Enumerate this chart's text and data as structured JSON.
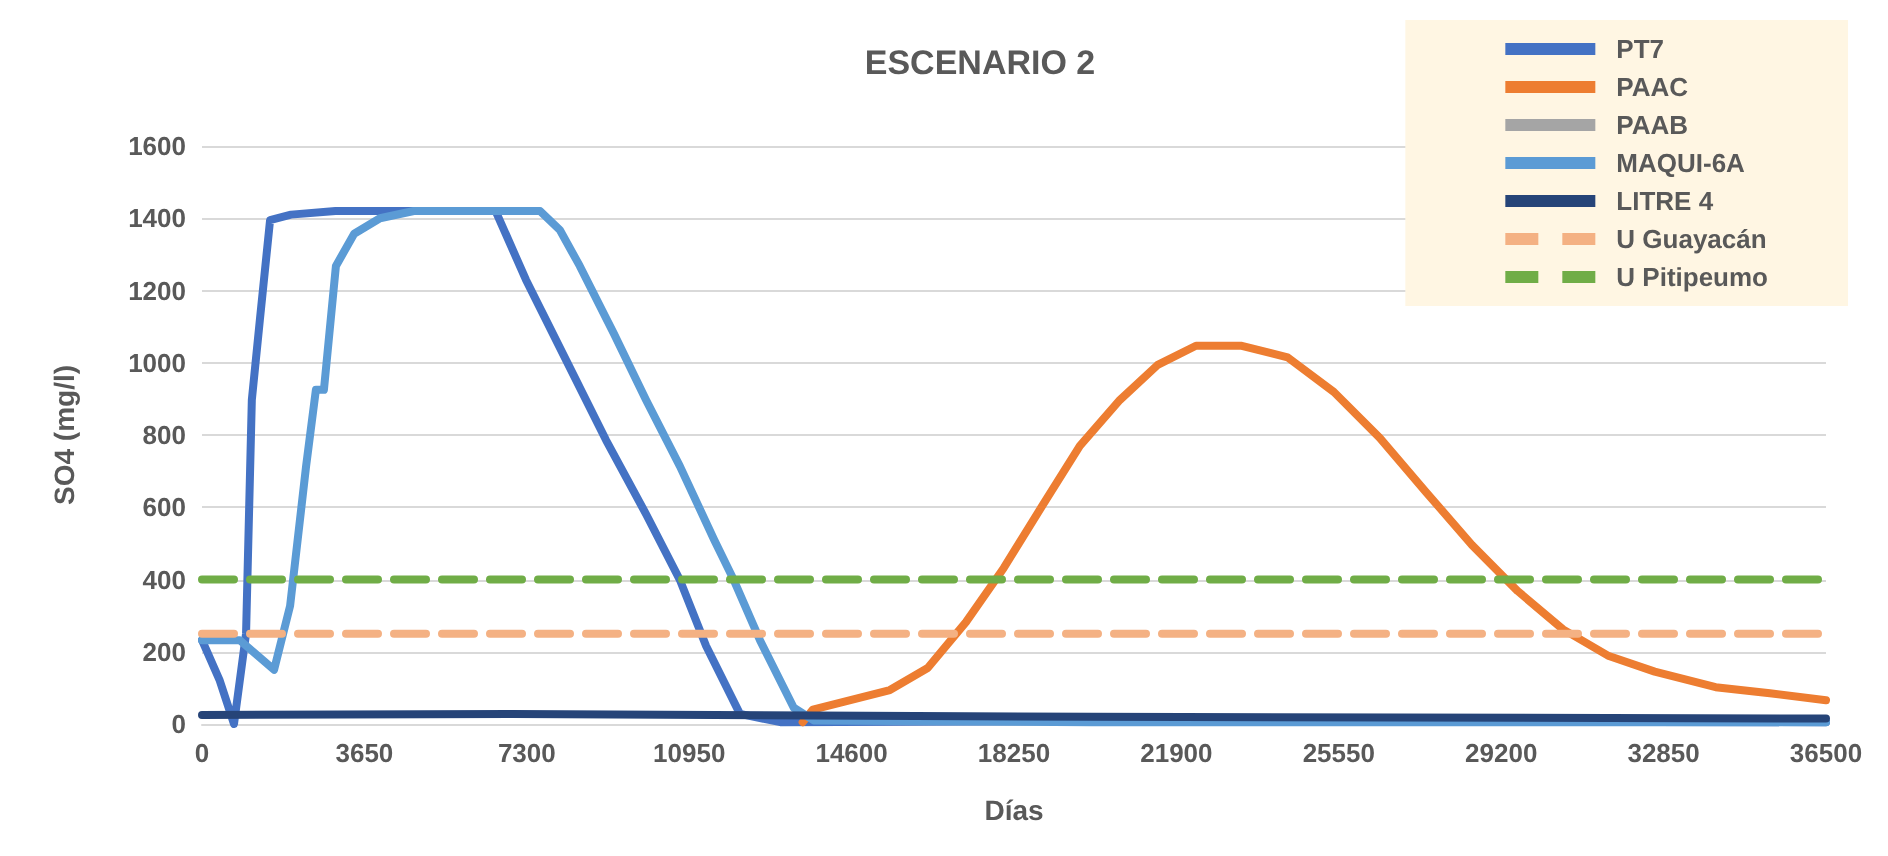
{
  "chart_data": {
    "type": "line",
    "title": "ESCENARIO 2",
    "xlabel": "Días",
    "ylabel": "SO4 (mg/l)",
    "xlim": [
      0,
      36500
    ],
    "xticks": [
      0,
      3650,
      7300,
      10950,
      14600,
      18250,
      21900,
      25550,
      29200,
      32850,
      36500
    ],
    "ylim": [
      0,
      1600
    ],
    "yticks": [
      0,
      200,
      400,
      600,
      800,
      1000,
      1200,
      1400,
      1600
    ],
    "grid": "y",
    "legend": "top right",
    "marker": "none",
    "series": [
      {
        "name": "PT7",
        "color": "#4472c4",
        "x": [
          0,
          400,
          719,
          990,
          1120,
          1300,
          1530,
          2000,
          3000,
          5000,
          6600,
          7280,
          8180,
          9080,
          9980,
          10740,
          11330,
          12090,
          13000,
          20000,
          36500
        ],
        "values": [
          232,
          120,
          0,
          250,
          897,
          1118,
          1395,
          1410,
          1420,
          1420,
          1420,
          1230,
          1008,
          786,
          581,
          399,
          216,
          28,
          5,
          8,
          5
        ]
      },
      {
        "name": "PAAC",
        "color": "#ed7d31",
        "x": [
          13500,
          13730,
          15460,
          16310,
          17170,
          18020,
          18880,
          19730,
          20630,
          21480,
          22340,
          23370,
          24400,
          25440,
          26470,
          27510,
          28540,
          29570,
          30590,
          31620,
          32650,
          34020,
          35240,
          36500
        ],
        "values": [
          5,
          40,
          94,
          155,
          282,
          432,
          603,
          770,
          897,
          994,
          1047,
          1047,
          1015,
          919,
          792,
          642,
          496,
          368,
          262,
          188,
          145,
          102,
          85,
          66
        ]
      },
      {
        "name": "PAAB",
        "color": "#a5a5a5"
      },
      {
        "name": "MAQUI-6A",
        "color": "#5b9bd5",
        "x": [
          0,
          850,
          1620,
          1980,
          2340,
          2560,
          2740,
          3010,
          3420,
          4000,
          4760,
          7600,
          8040,
          8490,
          9260,
          9980,
          10740,
          11510,
          11950,
          12540,
          13300,
          13750,
          20000,
          36500
        ],
        "values": [
          232,
          232,
          150,
          327,
          714,
          925,
          925,
          1268,
          1357,
          1400,
          1420,
          1420,
          1368,
          1268,
          1080,
          897,
          714,
          510,
          399,
          232,
          45,
          10,
          5,
          5
        ]
      },
      {
        "name": "LITRE 4",
        "color": "#264478",
        "x": [
          0,
          7000,
          20000,
          36500
        ],
        "values": [
          25,
          28,
          20,
          15
        ]
      },
      {
        "name": "U Guayacán",
        "color": "#f4b183",
        "line_style": "dashed",
        "x": [
          0,
          36500
        ],
        "values": [
          250,
          250
        ]
      },
      {
        "name": "U Pitipeumo",
        "color": "#70ad47",
        "line_style": "dashed",
        "x": [
          0,
          36500
        ],
        "values": [
          400,
          400
        ]
      }
    ]
  }
}
